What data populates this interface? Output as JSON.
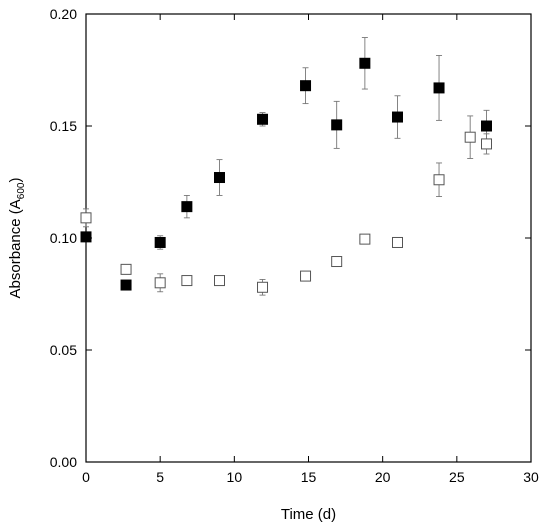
{
  "chart_data": {
    "type": "scatter",
    "title": "",
    "xlabel": "Time (d)",
    "ylabel": {
      "main": "Absorbance (A",
      "sub": "600",
      "tail": ")"
    },
    "xlim": [
      0,
      30
    ],
    "ylim": [
      0,
      0.2
    ],
    "xticks": [
      0,
      5,
      10,
      15,
      20,
      25,
      30
    ],
    "yticks": [
      "0.00",
      "0.05",
      "0.10",
      "0.15",
      "0.20"
    ],
    "grid": false,
    "series": [
      {
        "marker": "filled-square",
        "points": [
          {
            "x": 0.0,
            "y": 0.1005,
            "err": 0
          },
          {
            "x": 2.7,
            "y": 0.079,
            "err": 0
          },
          {
            "x": 5.0,
            "y": 0.098,
            "err": 0.003
          },
          {
            "x": 6.8,
            "y": 0.114,
            "err": 0.005
          },
          {
            "x": 9.0,
            "y": 0.127,
            "err": 0.008
          },
          {
            "x": 11.9,
            "y": 0.153,
            "err": 0.003
          },
          {
            "x": 14.8,
            "y": 0.168,
            "err": 0.008
          },
          {
            "x": 16.9,
            "y": 0.1505,
            "err": 0.0105
          },
          {
            "x": 18.8,
            "y": 0.178,
            "err": 0.0115
          },
          {
            "x": 21.0,
            "y": 0.154,
            "err": 0.0095
          },
          {
            "x": 23.8,
            "y": 0.167,
            "err": 0.0145
          },
          {
            "x": 27.0,
            "y": 0.15,
            "err": 0.007
          }
        ]
      },
      {
        "marker": "open-square",
        "points": [
          {
            "x": 0.0,
            "y": 0.109,
            "err": 0.004
          },
          {
            "x": 2.7,
            "y": 0.086,
            "err": 0.002
          },
          {
            "x": 5.0,
            "y": 0.08,
            "err": 0.004
          },
          {
            "x": 6.8,
            "y": 0.081,
            "err": 0.002
          },
          {
            "x": 9.0,
            "y": 0.081,
            "err": 0.002
          },
          {
            "x": 11.9,
            "y": 0.078,
            "err": 0.0035
          },
          {
            "x": 14.8,
            "y": 0.083,
            "err": 0.002
          },
          {
            "x": 16.9,
            "y": 0.0895,
            "err": 0.002
          },
          {
            "x": 18.8,
            "y": 0.0995,
            "err": 0.002
          },
          {
            "x": 21.0,
            "y": 0.098,
            "err": 0.002
          },
          {
            "x": 23.8,
            "y": 0.126,
            "err": 0.0075
          },
          {
            "x": 25.9,
            "y": 0.145,
            "err": 0.0095
          },
          {
            "x": 27.0,
            "y": 0.142,
            "err": 0.0045
          }
        ]
      }
    ]
  }
}
